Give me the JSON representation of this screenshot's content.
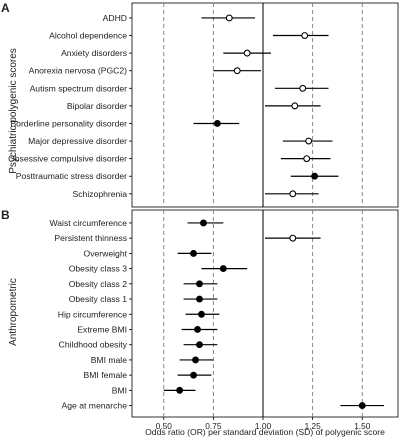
{
  "chart_data": [
    {
      "type": "scatter",
      "panel_label": "A",
      "ylabel": "Psychiatric polygenic scores",
      "xlim": [
        0.34,
        1.68
      ],
      "reference_line": 1.0,
      "dashed_lines": [
        0.5,
        0.75,
        1.25,
        1.5
      ],
      "grid": false,
      "rows": [
        {
          "label": "ADHD",
          "estimate": 0.83,
          "lower": 0.69,
          "upper": 0.96,
          "marker": "open"
        },
        {
          "label": "Alcohol dependence",
          "estimate": 1.21,
          "lower": 1.05,
          "upper": 1.33,
          "marker": "open"
        },
        {
          "label": "Anxiety disorders",
          "estimate": 0.92,
          "lower": 0.8,
          "upper": 1.04,
          "marker": "open"
        },
        {
          "label": "Anorexia nervosa (PGC2)",
          "estimate": 0.87,
          "lower": 0.75,
          "upper": 0.99,
          "marker": "open"
        },
        {
          "label": "Autism spectrum disorder",
          "estimate": 1.2,
          "lower": 1.06,
          "upper": 1.33,
          "marker": "open"
        },
        {
          "label": "Bipolar disorder",
          "estimate": 1.16,
          "lower": 1.01,
          "upper": 1.29,
          "marker": "open"
        },
        {
          "label": "Borderline personality disorder",
          "estimate": 0.77,
          "lower": 0.65,
          "upper": 0.88,
          "marker": "filled"
        },
        {
          "label": "Major depressive disorder",
          "estimate": 1.23,
          "lower": 1.1,
          "upper": 1.35,
          "marker": "open"
        },
        {
          "label": "Obsessive compulsive disorder",
          "estimate": 1.22,
          "lower": 1.09,
          "upper": 1.34,
          "marker": "open"
        },
        {
          "label": "Posttraumatic stress disorder",
          "estimate": 1.26,
          "lower": 1.14,
          "upper": 1.38,
          "marker": "filled"
        },
        {
          "label": "Schizophrenia",
          "estimate": 1.15,
          "lower": 1.01,
          "upper": 1.28,
          "marker": "open"
        }
      ]
    },
    {
      "type": "scatter",
      "panel_label": "B",
      "ylabel": "Anthropometric",
      "xlabel": "Odds ratio (OR) per standard deviation (SD) of polygenic score",
      "xlim": [
        0.34,
        1.68
      ],
      "xticks": [
        "0.50",
        "0.75",
        "1.00",
        "1.25",
        "1.50"
      ],
      "reference_line": 1.0,
      "dashed_lines": [
        0.5,
        0.75,
        1.25,
        1.5
      ],
      "grid": false,
      "rows": [
        {
          "label": "Waist circumference",
          "estimate": 0.7,
          "lower": 0.62,
          "upper": 0.8,
          "marker": "filled"
        },
        {
          "label": "Persistent thinness",
          "estimate": 1.15,
          "lower": 1.01,
          "upper": 1.29,
          "marker": "open"
        },
        {
          "label": "Overweight",
          "estimate": 0.65,
          "lower": 0.57,
          "upper": 0.74,
          "marker": "filled"
        },
        {
          "label": "Obesity class 3",
          "estimate": 0.8,
          "lower": 0.69,
          "upper": 0.92,
          "marker": "filled"
        },
        {
          "label": "Obesity class 2",
          "estimate": 0.68,
          "lower": 0.6,
          "upper": 0.77,
          "marker": "filled"
        },
        {
          "label": "Obesity class 1",
          "estimate": 0.68,
          "lower": 0.6,
          "upper": 0.77,
          "marker": "filled"
        },
        {
          "label": "Hip circumference",
          "estimate": 0.69,
          "lower": 0.61,
          "upper": 0.78,
          "marker": "filled"
        },
        {
          "label": "Extreme BMI",
          "estimate": 0.67,
          "lower": 0.59,
          "upper": 0.77,
          "marker": "filled"
        },
        {
          "label": "Childhood obesity",
          "estimate": 0.68,
          "lower": 0.6,
          "upper": 0.77,
          "marker": "filled"
        },
        {
          "label": "BMI male",
          "estimate": 0.66,
          "lower": 0.58,
          "upper": 0.75,
          "marker": "filled"
        },
        {
          "label": "BMI female",
          "estimate": 0.65,
          "lower": 0.57,
          "upper": 0.74,
          "marker": "filled"
        },
        {
          "label": "BMI",
          "estimate": 0.58,
          "lower": 0.5,
          "upper": 0.66,
          "marker": "filled"
        },
        {
          "label": "Age at menarche",
          "estimate": 1.5,
          "lower": 1.39,
          "upper": 1.61,
          "marker": "filled"
        }
      ]
    }
  ]
}
